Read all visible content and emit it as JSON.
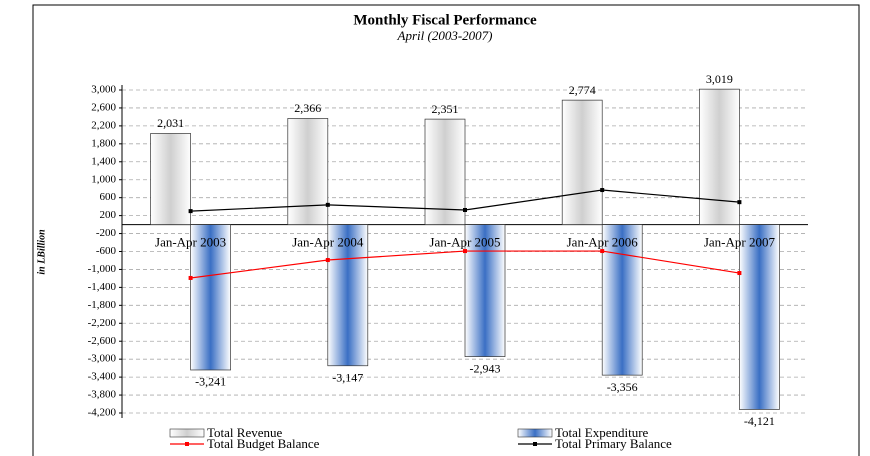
{
  "chart_data": {
    "type": "bar",
    "title": "Monthly Fiscal Performance",
    "subtitle": "April (2003-2007)",
    "y_label": "in LBillion",
    "categories": [
      "Jan-Apr 2003",
      "Jan-Apr 2004",
      "Jan-Apr 2005",
      "Jan-Apr 2006",
      "Jan-Apr 2007"
    ],
    "series": [
      {
        "name": "Total Revenue",
        "type": "bar",
        "color": "#cfcfcf",
        "values": [
          2031,
          2366,
          2351,
          2774,
          3019
        ],
        "value_labels": [
          "2,031",
          "2,366",
          "2,351",
          "2,774",
          "3,019"
        ]
      },
      {
        "name": "Total Expenditure",
        "type": "bar",
        "color": "#3a6fc4",
        "values": [
          -3241,
          -3147,
          -2943,
          -3356,
          -4121
        ],
        "value_labels": [
          "-3,241",
          "-3,147",
          "-2,943",
          "-3,356",
          "-4,121"
        ]
      },
      {
        "name": "Total Budget Balance",
        "type": "line",
        "color": "#ff0000",
        "values": [
          -1190,
          -790,
          -590,
          -590,
          -1080
        ]
      },
      {
        "name": "Total Primary Balance",
        "type": "line",
        "color": "#000000",
        "values": [
          300,
          440,
          325,
          770,
          500
        ]
      }
    ],
    "ylim": [
      -4200,
      3000
    ],
    "yticks": [
      {
        "value": 3000,
        "label": "3,000"
      },
      {
        "value": 2600,
        "label": "2,600"
      },
      {
        "value": 2200,
        "label": "2,200"
      },
      {
        "value": 1800,
        "label": "1,800"
      },
      {
        "value": 1400,
        "label": "1,400"
      },
      {
        "value": 1000,
        "label": "1,000"
      },
      600,
      200,
      -200,
      -600,
      {
        "value": -1000,
        "label": "-1,000"
      },
      {
        "value": -1400,
        "label": "-1,400"
      },
      {
        "value": -1800,
        "label": "-1,800"
      },
      {
        "value": -2200,
        "label": "-2,200"
      },
      {
        "value": -2600,
        "label": "-2,600"
      },
      {
        "value": -3000,
        "label": "-3,000"
      },
      {
        "value": -3400,
        "label": "-3,400"
      },
      {
        "value": -3800,
        "label": "-3,800"
      },
      {
        "value": -4200,
        "label": "-4,200"
      }
    ],
    "grid": true
  }
}
